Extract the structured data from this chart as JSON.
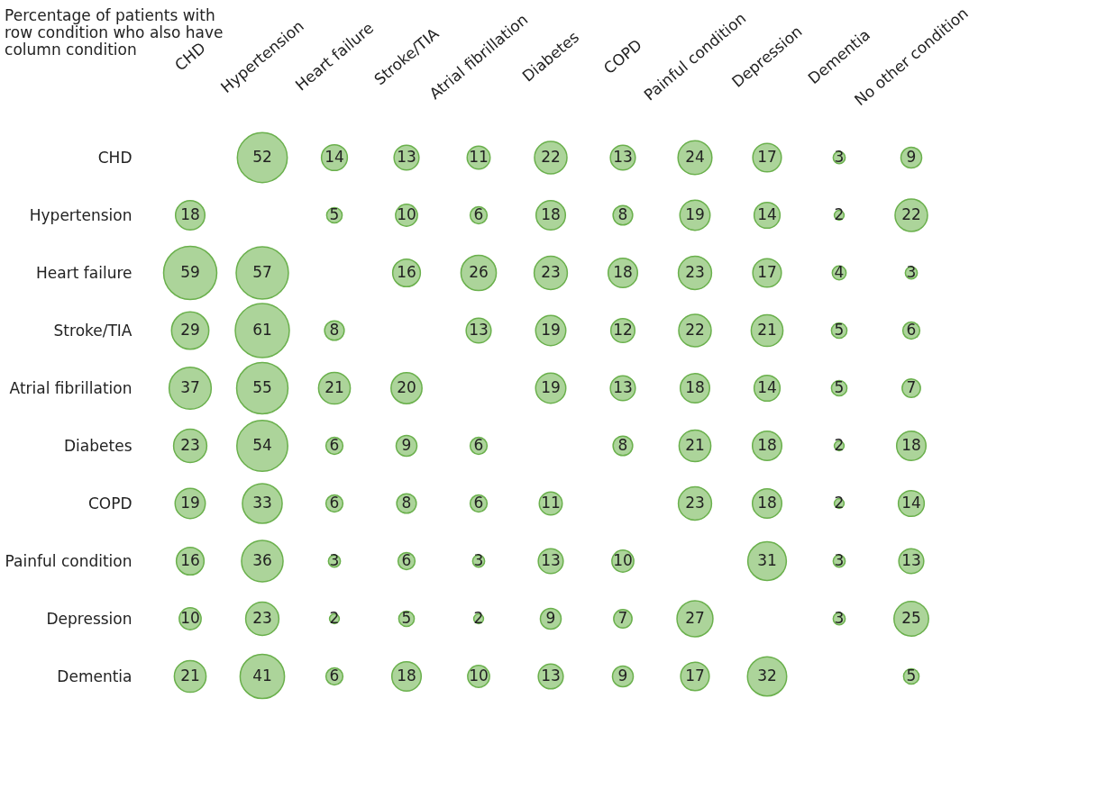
{
  "chart_data": {
    "type": "heatmap",
    "title": "Percentage of patients with row condition who also have column condition",
    "categories": [
      "CHD",
      "Hypertension",
      "Heart failure",
      "Stroke/TIA",
      "Atrial fibrillation",
      "Diabetes",
      "COPD",
      "Painful condition",
      "Depression",
      "Dementia",
      "No other condition"
    ],
    "y_categories": [
      "CHD",
      "Hypertension",
      "Heart failure",
      "Stroke/TIA",
      "Atrial fibrillation",
      "Diabetes",
      "COPD",
      "Painful condition",
      "Depression",
      "Dementia"
    ],
    "cells": [
      [
        null,
        52,
        14,
        13,
        11,
        22,
        13,
        24,
        17,
        3,
        9
      ],
      [
        18,
        null,
        5,
        10,
        6,
        18,
        8,
        19,
        14,
        2,
        22
      ],
      [
        59,
        57,
        null,
        16,
        26,
        23,
        18,
        23,
        17,
        4,
        3
      ],
      [
        29,
        61,
        8,
        null,
        13,
        19,
        12,
        22,
        21,
        5,
        6
      ],
      [
        37,
        55,
        21,
        20,
        null,
        19,
        13,
        18,
        14,
        5,
        7
      ],
      [
        23,
        54,
        6,
        9,
        6,
        null,
        8,
        21,
        18,
        2,
        18
      ],
      [
        19,
        33,
        6,
        8,
        6,
        11,
        null,
        23,
        18,
        2,
        14
      ],
      [
        16,
        36,
        3,
        6,
        3,
        13,
        10,
        null,
        31,
        3,
        13
      ],
      [
        10,
        23,
        2,
        5,
        2,
        9,
        7,
        27,
        null,
        3,
        25
      ],
      [
        21,
        41,
        6,
        18,
        10,
        13,
        9,
        17,
        32,
        null,
        5
      ]
    ],
    "color": "#acd49a",
    "data_labels": true
  }
}
